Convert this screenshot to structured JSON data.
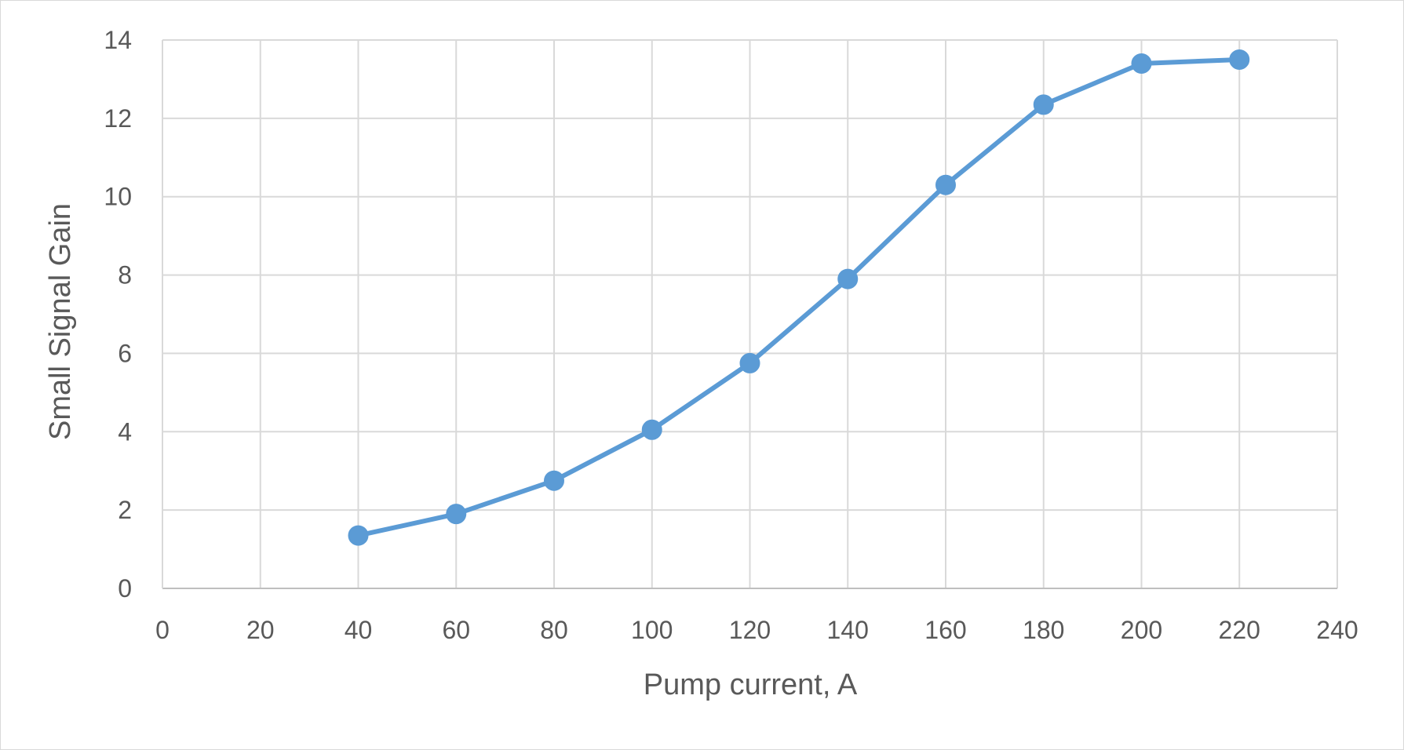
{
  "chart_data": {
    "type": "line",
    "title": "",
    "xlabel": "Pump current, A",
    "ylabel": "Small Signal Gain",
    "xlim": [
      0,
      240
    ],
    "ylim": [
      0,
      14
    ],
    "x_ticks": [
      0,
      20,
      40,
      60,
      80,
      100,
      120,
      140,
      160,
      180,
      200,
      220,
      240
    ],
    "y_ticks": [
      0,
      2,
      4,
      6,
      8,
      10,
      12,
      14
    ],
    "grid": true,
    "legend": "none",
    "series": [
      {
        "color": "#5b9bd5",
        "marker": "circle",
        "x": [
          40,
          60,
          80,
          100,
          120,
          140,
          160,
          180,
          200,
          220
        ],
        "y": [
          1.35,
          1.9,
          2.75,
          4.05,
          5.75,
          7.9,
          10.3,
          12.35,
          13.4,
          13.5
        ]
      }
    ]
  }
}
